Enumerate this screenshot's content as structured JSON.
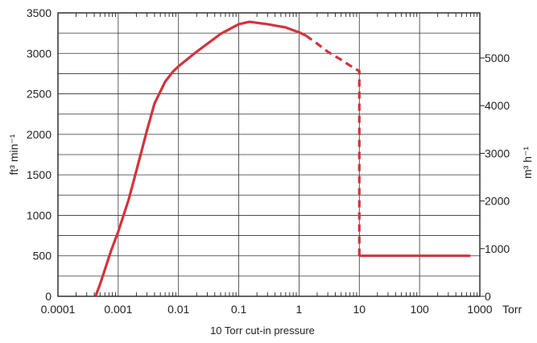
{
  "chart_data": {
    "type": "line",
    "title": "",
    "xlabel": "10 Torr cut-in pressure",
    "x_unit": "Torr",
    "x_scale": "log",
    "xlim": [
      0.0001,
      1000
    ],
    "x_ticks": [
      "0.0001",
      "0.001",
      "0.01",
      "0.1",
      "1",
      "10",
      "100",
      "1000"
    ],
    "ylabel_left": "ft³ min⁻¹",
    "ylim_left": [
      0,
      3500
    ],
    "y_ticks_left": [
      "0",
      "500",
      "1000",
      "1500",
      "2000",
      "2500",
      "3000",
      "3500"
    ],
    "ylabel_right": "m³ h⁻¹",
    "y_ticks_right": [
      "0",
      "1000",
      "2000",
      "3000",
      "4000",
      "5000"
    ],
    "y_right_per_left": 1.699,
    "grid": true,
    "line_color": "#d1343d",
    "series": [
      {
        "style": "solid",
        "x": [
          0.00042,
          0.0005,
          0.0006,
          0.00075,
          0.001,
          0.0015,
          0.002,
          0.003,
          0.004,
          0.006,
          0.008,
          0.01,
          0.02,
          0.05,
          0.1,
          0.15,
          0.3,
          0.6,
          1.0,
          1.3
        ],
        "y": [
          0,
          150,
          330,
          550,
          800,
          1200,
          1550,
          2050,
          2380,
          2650,
          2770,
          2840,
          3020,
          3240,
          3360,
          3390,
          3360,
          3320,
          3260,
          3220
        ]
      },
      {
        "style": "dashed",
        "x": [
          1.3,
          2,
          3,
          5,
          7,
          10,
          10,
          10
        ],
        "y": [
          3220,
          3120,
          3020,
          2920,
          2850,
          2780,
          1500,
          500
        ]
      },
      {
        "style": "solid",
        "x": [
          10,
          30,
          100,
          300,
          700
        ],
        "y": [
          500,
          500,
          500,
          500,
          500
        ]
      }
    ]
  }
}
